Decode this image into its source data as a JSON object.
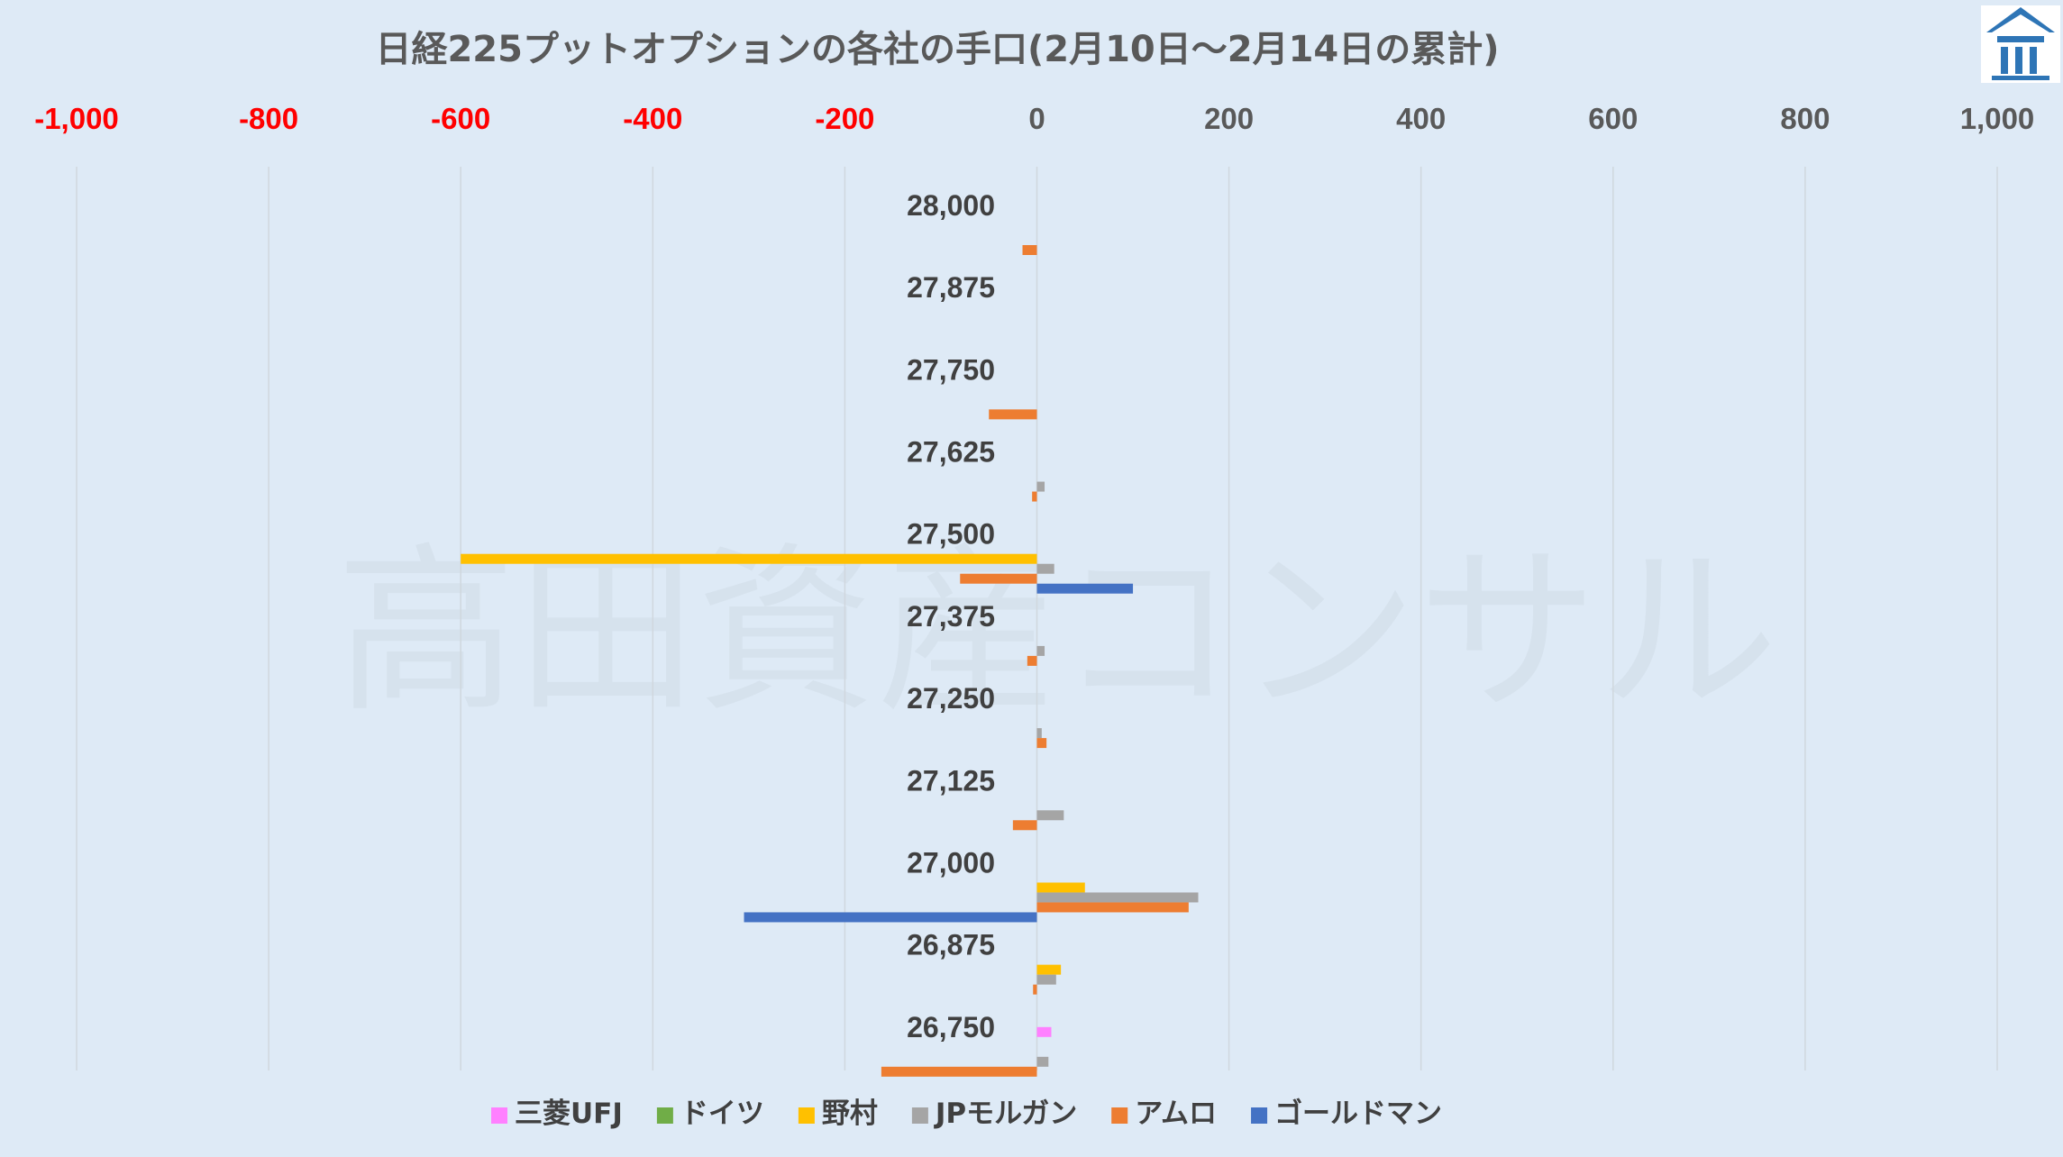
{
  "logo": {
    "icon": "building-pillars-icon",
    "color": "#2e75b6"
  },
  "watermark": "高田資産コンサル",
  "chart_data": {
    "type": "bar",
    "orientation": "horizontal",
    "title": "日経225プットオプションの各社の手口(2月10日～2月14日の累計)",
    "xlim": [
      -1000,
      1000
    ],
    "x_ticks": [
      -1000,
      -800,
      -600,
      -400,
      -200,
      0,
      200,
      400,
      600,
      800,
      1000
    ],
    "x_tick_labels": [
      "-1,000",
      "-800",
      "-600",
      "-400",
      "-200",
      "0",
      "200",
      "400",
      "600",
      "800",
      "1,000"
    ],
    "negative_tick_color": "#ff0000",
    "positive_tick_color": "#595959",
    "grid": true,
    "legend_position": "bottom",
    "categories": [
      "28,000",
      "27,875",
      "27,750",
      "27,625",
      "27,500",
      "27,375",
      "27,250",
      "27,125",
      "27,000",
      "26,875",
      "26,750"
    ],
    "series": [
      {
        "name": "三菱UFJ",
        "color": "#ff80ff",
        "values": [
          0,
          0,
          0,
          0,
          0,
          0,
          0,
          0,
          0,
          0,
          15
        ]
      },
      {
        "name": "ドイツ",
        "color": "#70ad47",
        "values": [
          0,
          0,
          0,
          0,
          0,
          0,
          0,
          0,
          0,
          0,
          0
        ]
      },
      {
        "name": "野村",
        "color": "#ffc000",
        "values": [
          0,
          0,
          0,
          0,
          -600,
          0,
          0,
          0,
          50,
          25,
          0
        ]
      },
      {
        "name": "JPモルガン",
        "color": "#a5a5a5",
        "values": [
          0,
          0,
          0,
          8,
          18,
          8,
          5,
          28,
          168,
          20,
          12
        ]
      },
      {
        "name": "アムロ",
        "color": "#ed7d31",
        "values": [
          -15,
          0,
          -50,
          -5,
          -80,
          -10,
          10,
          -25,
          158,
          -4,
          -162
        ]
      },
      {
        "name": "ゴールドマン",
        "color": "#4472c4",
        "values": [
          0,
          0,
          0,
          0,
          100,
          0,
          0,
          0,
          -305,
          0,
          0
        ]
      }
    ]
  }
}
